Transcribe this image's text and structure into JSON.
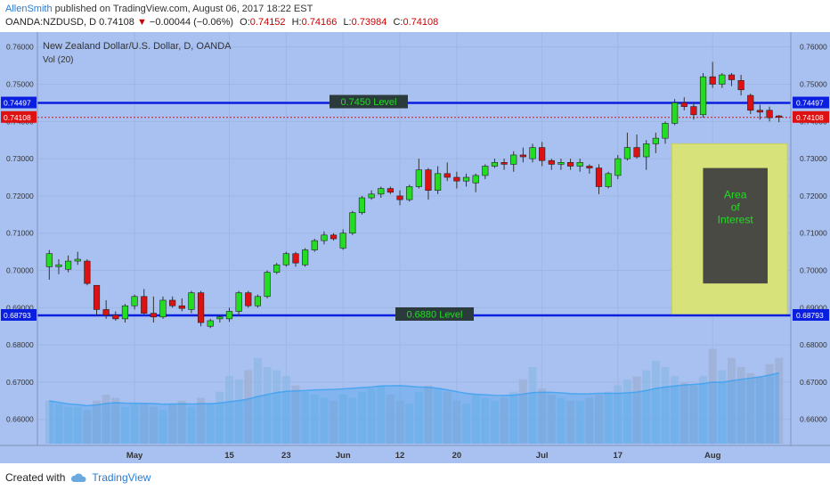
{
  "header": {
    "author": "AllenSmith",
    "published_text": "published on TradingView.com, August 06, 2017 18:22 EST",
    "symbol": "OANDA:NZDUSD, D",
    "last": "0.74108",
    "change": "−0.00044 (−0.06%)",
    "o_label": "O:",
    "o_value": "0.74152",
    "h_label": "H:",
    "h_value": "0.74166",
    "l_label": "L:",
    "l_value": "0.73984",
    "c_label": "C:",
    "c_value": "0.74108"
  },
  "footer": {
    "created_with": "Created with",
    "brand": "TradingView"
  },
  "colors": {
    "plot_bg": "#a9c1f0",
    "up": "#22dd22",
    "down": "#dd1111",
    "level_line": "#0a1ee0",
    "volume": "#7aa3e0",
    "volume_ma": "#3aa0f0",
    "zone_outer": "#d8e27a",
    "zone_inner": "#4a4a44",
    "zone_text": "#22dd22"
  },
  "chart_data": {
    "type": "candlestick",
    "title": "New Zealand Dollar/U.S. Dollar, D, OANDA",
    "indicator": "Vol (20)",
    "y_ticks": [
      "0.76000",
      "0.75000",
      "0.74000",
      "0.73000",
      "0.72000",
      "0.71000",
      "0.70000",
      "0.69000",
      "0.68000",
      "0.67000",
      "0.66000"
    ],
    "ylim": [
      0.653,
      0.764
    ],
    "x_ticks": [
      {
        "label": "May",
        "index": 9
      },
      {
        "label": "15",
        "index": 19
      },
      {
        "label": "23",
        "index": 25
      },
      {
        "label": "Jun",
        "index": 31
      },
      {
        "label": "12",
        "index": 37
      },
      {
        "label": "20",
        "index": 43
      },
      {
        "label": "Jul",
        "index": 52
      },
      {
        "label": "17",
        "index": 60
      },
      {
        "label": "Aug",
        "index": 70
      }
    ],
    "price_labels": [
      {
        "text": "0.74497",
        "value": 0.74497,
        "kind": "level"
      },
      {
        "text": "0.74108",
        "value": 0.74108,
        "kind": "last"
      },
      {
        "text": "0.68793",
        "value": 0.68793,
        "kind": "level"
      }
    ],
    "levels": [
      {
        "value": 0.74497,
        "label": "0.7450 Level"
      },
      {
        "value": 0.68793,
        "label": "0.6880 Level"
      }
    ],
    "zone": {
      "x_from": 66,
      "x_to": 74,
      "y_top": 0.734,
      "y_bottom": 0.688,
      "inner_top": 0.7275,
      "inner_bottom": 0.6965,
      "text": [
        "Area",
        "of",
        "Interest"
      ]
    },
    "candles": [
      {
        "o": 0.701,
        "h": 0.7055,
        "l": 0.6975,
        "c": 0.7045
      },
      {
        "o": 0.701,
        "h": 0.703,
        "l": 0.699,
        "c": 0.7015
      },
      {
        "o": 0.7003,
        "h": 0.704,
        "l": 0.6995,
        "c": 0.7025
      },
      {
        "o": 0.7025,
        "h": 0.705,
        "l": 0.7015,
        "c": 0.703
      },
      {
        "o": 0.7025,
        "h": 0.703,
        "l": 0.696,
        "c": 0.6965
      },
      {
        "o": 0.696,
        "h": 0.696,
        "l": 0.688,
        "c": 0.6895
      },
      {
        "o": 0.6895,
        "h": 0.692,
        "l": 0.687,
        "c": 0.688
      },
      {
        "o": 0.688,
        "h": 0.689,
        "l": 0.6865,
        "c": 0.687
      },
      {
        "o": 0.687,
        "h": 0.691,
        "l": 0.686,
        "c": 0.6905
      },
      {
        "o": 0.6905,
        "h": 0.6935,
        "l": 0.6895,
        "c": 0.693
      },
      {
        "o": 0.693,
        "h": 0.695,
        "l": 0.688,
        "c": 0.6885
      },
      {
        "o": 0.6885,
        "h": 0.693,
        "l": 0.686,
        "c": 0.6875
      },
      {
        "o": 0.6875,
        "h": 0.693,
        "l": 0.687,
        "c": 0.692
      },
      {
        "o": 0.692,
        "h": 0.693,
        "l": 0.69,
        "c": 0.6905
      },
      {
        "o": 0.6905,
        "h": 0.6925,
        "l": 0.689,
        "c": 0.6898
      },
      {
        "o": 0.6895,
        "h": 0.6945,
        "l": 0.6885,
        "c": 0.694
      },
      {
        "o": 0.694,
        "h": 0.6945,
        "l": 0.685,
        "c": 0.686
      },
      {
        "o": 0.685,
        "h": 0.687,
        "l": 0.6845,
        "c": 0.6865
      },
      {
        "o": 0.687,
        "h": 0.688,
        "l": 0.686,
        "c": 0.6875
      },
      {
        "o": 0.687,
        "h": 0.69,
        "l": 0.6862,
        "c": 0.689
      },
      {
        "o": 0.689,
        "h": 0.6945,
        "l": 0.688,
        "c": 0.694
      },
      {
        "o": 0.694,
        "h": 0.6945,
        "l": 0.69,
        "c": 0.6905
      },
      {
        "o": 0.6905,
        "h": 0.6935,
        "l": 0.69,
        "c": 0.693
      },
      {
        "o": 0.693,
        "h": 0.7,
        "l": 0.6925,
        "c": 0.6995
      },
      {
        "o": 0.6995,
        "h": 0.702,
        "l": 0.699,
        "c": 0.7015
      },
      {
        "o": 0.7015,
        "h": 0.705,
        "l": 0.701,
        "c": 0.7045
      },
      {
        "o": 0.7045,
        "h": 0.705,
        "l": 0.701,
        "c": 0.702
      },
      {
        "o": 0.7015,
        "h": 0.706,
        "l": 0.701,
        "c": 0.7055
      },
      {
        "o": 0.7055,
        "h": 0.7085,
        "l": 0.705,
        "c": 0.708
      },
      {
        "o": 0.708,
        "h": 0.7105,
        "l": 0.707,
        "c": 0.7095
      },
      {
        "o": 0.7095,
        "h": 0.71,
        "l": 0.708,
        "c": 0.7085
      },
      {
        "o": 0.706,
        "h": 0.711,
        "l": 0.7055,
        "c": 0.71
      },
      {
        "o": 0.71,
        "h": 0.716,
        "l": 0.7095,
        "c": 0.7155
      },
      {
        "o": 0.7155,
        "h": 0.72,
        "l": 0.715,
        "c": 0.7195
      },
      {
        "o": 0.7195,
        "h": 0.7215,
        "l": 0.719,
        "c": 0.7205
      },
      {
        "o": 0.7205,
        "h": 0.7225,
        "l": 0.7195,
        "c": 0.722
      },
      {
        "o": 0.722,
        "h": 0.7225,
        "l": 0.7205,
        "c": 0.721
      },
      {
        "o": 0.72,
        "h": 0.7215,
        "l": 0.7175,
        "c": 0.719
      },
      {
        "o": 0.719,
        "h": 0.723,
        "l": 0.7185,
        "c": 0.7225
      },
      {
        "o": 0.7225,
        "h": 0.73,
        "l": 0.722,
        "c": 0.727
      },
      {
        "o": 0.727,
        "h": 0.7275,
        "l": 0.719,
        "c": 0.7215
      },
      {
        "o": 0.7215,
        "h": 0.728,
        "l": 0.7205,
        "c": 0.726
      },
      {
        "o": 0.726,
        "h": 0.729,
        "l": 0.724,
        "c": 0.725
      },
      {
        "o": 0.725,
        "h": 0.7265,
        "l": 0.722,
        "c": 0.724
      },
      {
        "o": 0.724,
        "h": 0.726,
        "l": 0.7225,
        "c": 0.725
      },
      {
        "o": 0.7235,
        "h": 0.726,
        "l": 0.721,
        "c": 0.7255
      },
      {
        "o": 0.7255,
        "h": 0.7285,
        "l": 0.7245,
        "c": 0.728
      },
      {
        "o": 0.728,
        "h": 0.73,
        "l": 0.7275,
        "c": 0.729
      },
      {
        "o": 0.729,
        "h": 0.73,
        "l": 0.727,
        "c": 0.7285
      },
      {
        "o": 0.7285,
        "h": 0.732,
        "l": 0.7265,
        "c": 0.731
      },
      {
        "o": 0.731,
        "h": 0.733,
        "l": 0.729,
        "c": 0.7305
      },
      {
        "o": 0.73,
        "h": 0.734,
        "l": 0.729,
        "c": 0.733
      },
      {
        "o": 0.733,
        "h": 0.7345,
        "l": 0.728,
        "c": 0.7295
      },
      {
        "o": 0.7295,
        "h": 0.73,
        "l": 0.727,
        "c": 0.7285
      },
      {
        "o": 0.7285,
        "h": 0.73,
        "l": 0.727,
        "c": 0.729
      },
      {
        "o": 0.729,
        "h": 0.73,
        "l": 0.727,
        "c": 0.728
      },
      {
        "o": 0.728,
        "h": 0.73,
        "l": 0.7265,
        "c": 0.729
      },
      {
        "o": 0.728,
        "h": 0.7285,
        "l": 0.726,
        "c": 0.7275
      },
      {
        "o": 0.7275,
        "h": 0.7285,
        "l": 0.7205,
        "c": 0.7225
      },
      {
        "o": 0.7225,
        "h": 0.7265,
        "l": 0.722,
        "c": 0.726
      },
      {
        "o": 0.7255,
        "h": 0.731,
        "l": 0.7245,
        "c": 0.73
      },
      {
        "o": 0.73,
        "h": 0.737,
        "l": 0.7295,
        "c": 0.733
      },
      {
        "o": 0.733,
        "h": 0.7365,
        "l": 0.73,
        "c": 0.7305
      },
      {
        "o": 0.7305,
        "h": 0.735,
        "l": 0.727,
        "c": 0.734
      },
      {
        "o": 0.734,
        "h": 0.737,
        "l": 0.7315,
        "c": 0.7355
      },
      {
        "o": 0.7355,
        "h": 0.74,
        "l": 0.734,
        "c": 0.7395
      },
      {
        "o": 0.7395,
        "h": 0.746,
        "l": 0.739,
        "c": 0.745
      },
      {
        "o": 0.745,
        "h": 0.7465,
        "l": 0.743,
        "c": 0.744
      },
      {
        "o": 0.744,
        "h": 0.745,
        "l": 0.7405,
        "c": 0.7418
      },
      {
        "o": 0.7418,
        "h": 0.753,
        "l": 0.741,
        "c": 0.752
      },
      {
        "o": 0.752,
        "h": 0.756,
        "l": 0.749,
        "c": 0.75
      },
      {
        "o": 0.75,
        "h": 0.753,
        "l": 0.749,
        "c": 0.7525
      },
      {
        "o": 0.7525,
        "h": 0.753,
        "l": 0.7495,
        "c": 0.7512
      },
      {
        "o": 0.751,
        "h": 0.7525,
        "l": 0.747,
        "c": 0.7485
      },
      {
        "o": 0.747,
        "h": 0.7475,
        "l": 0.742,
        "c": 0.743
      },
      {
        "o": 0.743,
        "h": 0.7445,
        "l": 0.7405,
        "c": 0.7425
      },
      {
        "o": 0.743,
        "h": 0.744,
        "l": 0.74,
        "c": 0.741
      },
      {
        "o": 0.7415,
        "h": 0.7417,
        "l": 0.7398,
        "c": 0.7411
      }
    ],
    "volume": [
      14,
      13,
      12,
      12,
      11,
      14,
      16,
      15,
      12,
      13,
      13,
      12,
      11,
      13,
      14,
      12,
      15,
      13,
      17,
      22,
      21,
      24,
      28,
      25,
      24,
      22,
      19,
      17,
      16,
      15,
      14,
      16,
      15,
      17,
      18,
      19,
      16,
      14,
      13,
      17,
      19,
      18,
      17,
      14,
      13,
      16,
      15,
      14,
      15,
      17,
      21,
      25,
      18,
      16,
      15,
      14,
      14,
      15,
      16,
      17,
      19,
      21,
      22,
      24,
      27,
      25,
      22,
      20,
      19,
      22,
      31,
      24,
      28,
      25,
      23,
      22,
      26,
      28
    ]
  }
}
